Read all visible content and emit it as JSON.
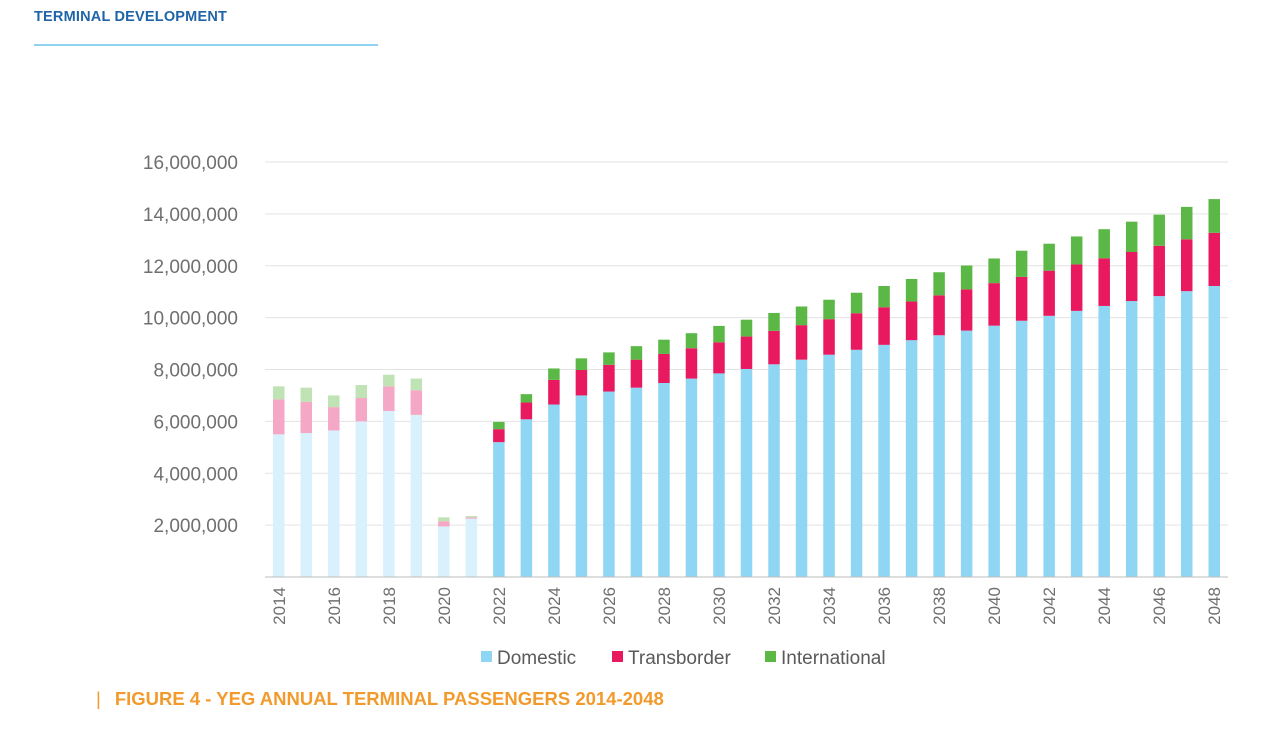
{
  "header": {
    "section_title": "TERMINAL DEVELOPMENT"
  },
  "figure": {
    "separator": "|",
    "caption": "FIGURE 4 - YEG ANNUAL TERMINAL PASSENGERS 2014-2048"
  },
  "chart_data": {
    "type": "bar",
    "stacked": true,
    "categories": [
      "2014",
      "2015",
      "2016",
      "2017",
      "2018",
      "2019",
      "2020",
      "2021",
      "2022",
      "2023",
      "2024",
      "2025",
      "2026",
      "2027",
      "2028",
      "2029",
      "2030",
      "2031",
      "2032",
      "2033",
      "2034",
      "2035",
      "2036",
      "2037",
      "2038",
      "2039",
      "2040",
      "2041",
      "2042",
      "2043",
      "2044",
      "2045",
      "2046",
      "2047",
      "2048"
    ],
    "x_tick_labels": [
      "2014",
      "2016",
      "2018",
      "2020",
      "2022",
      "2024",
      "2026",
      "2028",
      "2030",
      "2032",
      "2034",
      "2036",
      "2038",
      "2040",
      "2042",
      "2044",
      "2046",
      "2048"
    ],
    "y_tick_labels": [
      "2,000,000",
      "4,000,000",
      "6,000,000",
      "8,000,000",
      "10,000,000",
      "12,000,000",
      "14,000,000",
      "16,000,000"
    ],
    "ylim": [
      0,
      16000000
    ],
    "grid": true,
    "legend_position": "bottom",
    "historical_years_shown_lighter": [
      "2014",
      "2015",
      "2016",
      "2017",
      "2018",
      "2019",
      "2020",
      "2021"
    ],
    "series": [
      {
        "name": "Domestic",
        "color": "#8fd6f4",
        "historical_color": "#d8f1fc",
        "values": [
          5500000,
          5550000,
          5650000,
          6000000,
          6400000,
          6250000,
          1950000,
          2250000,
          5200000,
          6080000,
          6650000,
          7000000,
          7150000,
          7300000,
          7480000,
          7650000,
          7850000,
          8020000,
          8200000,
          8380000,
          8570000,
          8760000,
          8950000,
          9130000,
          9320000,
          9500000,
          9690000,
          9880000,
          10070000,
          10260000,
          10450000,
          10640000,
          10830000,
          11020000,
          11220000
        ]
      },
      {
        "name": "Transborder",
        "color": "#e8195f",
        "historical_color": "#f5a8c5",
        "values": [
          1350000,
          1200000,
          900000,
          900000,
          950000,
          950000,
          200000,
          50000,
          500000,
          650000,
          950000,
          980000,
          1030000,
          1080000,
          1120000,
          1170000,
          1200000,
          1250000,
          1290000,
          1330000,
          1370000,
          1410000,
          1450000,
          1490000,
          1540000,
          1590000,
          1640000,
          1690000,
          1740000,
          1790000,
          1840000,
          1890000,
          1940000,
          2000000,
          2050000
        ]
      },
      {
        "name": "International",
        "color": "#5bb847",
        "historical_color": "#bfe3b4",
        "values": [
          500000,
          550000,
          450000,
          500000,
          450000,
          450000,
          150000,
          50000,
          280000,
          320000,
          440000,
          450000,
          480000,
          520000,
          550000,
          580000,
          630000,
          650000,
          690000,
          720000,
          750000,
          790000,
          820000,
          870000,
          890000,
          920000,
          950000,
          1010000,
          1040000,
          1080000,
          1120000,
          1170000,
          1200000,
          1250000,
          1300000
        ]
      }
    ]
  }
}
